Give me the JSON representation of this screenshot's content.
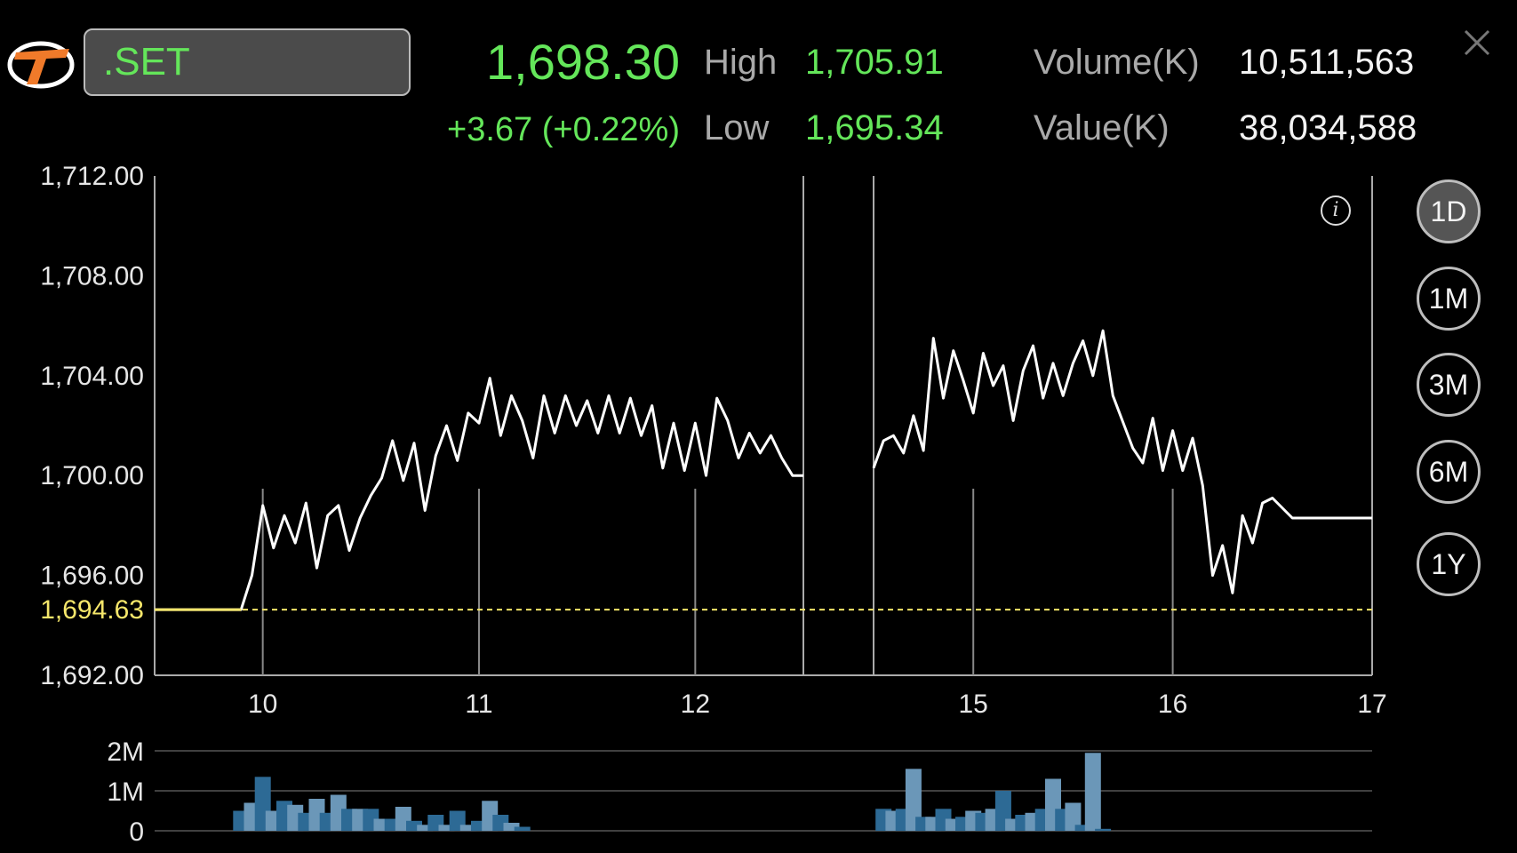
{
  "header": {
    "symbol": ".SET",
    "last_price": "1,698.30",
    "change": "+3.67 (+0.22%)",
    "high_label": "High",
    "high_value": "1,705.91",
    "low_label": "Low",
    "low_value": "1,695.34",
    "volume_label": "Volume(K)",
    "volume_value": "10,511,563",
    "value_label": "Value(K)",
    "value_value": "38,034,588"
  },
  "periods": [
    {
      "label": "1D",
      "active": true
    },
    {
      "label": "1M",
      "active": false
    },
    {
      "label": "3M",
      "active": false
    },
    {
      "label": "6M",
      "active": false
    },
    {
      "label": "1Y",
      "active": false
    }
  ],
  "icons": {
    "logo": "brand-logo-icon",
    "close": "close-icon",
    "info": "info-icon"
  },
  "colors": {
    "up": "#64e65a",
    "reference": "#f5e66a",
    "line": "#ffffff",
    "volume_dark": "#2d6a95",
    "volume_light": "#6b97b8"
  },
  "chart_data": [
    {
      "type": "line",
      "title": "",
      "xlabel": "",
      "ylabel": "",
      "x_ticks": [
        "10",
        "11",
        "12",
        "15",
        "16",
        "17"
      ],
      "y_ticks": [
        "1,712.00",
        "1,708.00",
        "1,704.00",
        "1,700.00",
        "1,696.00",
        "1,692.00"
      ],
      "ylim": [
        1692,
        1712
      ],
      "reference_line": {
        "label": "1,694.63",
        "value": 1694.63
      },
      "grid": false,
      "series": [
        {
          "segment": "morning",
          "x": [
            9.5,
            9.6,
            9.7,
            9.8,
            9.9,
            9.95,
            10.0,
            10.05,
            10.1,
            10.15,
            10.2,
            10.25,
            10.3,
            10.35,
            10.4,
            10.45,
            10.5,
            10.55,
            10.6,
            10.65,
            10.7,
            10.75,
            10.8,
            10.85,
            10.9,
            10.95,
            11.0,
            11.05,
            11.1,
            11.15,
            11.2,
            11.25,
            11.3,
            11.35,
            11.4,
            11.45,
            11.5,
            11.55,
            11.6,
            11.65,
            11.7,
            11.75,
            11.8,
            11.85,
            11.9,
            11.95,
            12.0,
            12.05,
            12.1,
            12.15,
            12.2,
            12.25,
            12.3,
            12.35,
            12.4,
            12.45,
            12.5
          ],
          "y": [
            1694.63,
            1694.63,
            1694.63,
            1694.63,
            1694.63,
            1696.0,
            1698.8,
            1697.1,
            1698.4,
            1697.3,
            1698.9,
            1696.3,
            1698.4,
            1698.8,
            1697.0,
            1698.3,
            1699.2,
            1699.9,
            1701.4,
            1699.8,
            1701.3,
            1698.6,
            1700.8,
            1702.0,
            1700.6,
            1702.5,
            1702.1,
            1703.9,
            1701.6,
            1703.2,
            1702.2,
            1700.7,
            1703.2,
            1701.7,
            1703.2,
            1702.0,
            1703.0,
            1701.7,
            1703.2,
            1701.7,
            1703.1,
            1701.6,
            1702.8,
            1700.3,
            1702.1,
            1700.2,
            1702.1,
            1700.0,
            1703.1,
            1702.2,
            1700.7,
            1701.7,
            1700.9,
            1701.6,
            1700.7,
            1700.0,
            1700.0
          ]
        },
        {
          "segment": "afternoon",
          "x": [
            14.5,
            14.55,
            14.6,
            14.65,
            14.7,
            14.75,
            14.8,
            14.85,
            14.9,
            14.95,
            15.0,
            15.05,
            15.1,
            15.15,
            15.2,
            15.25,
            15.3,
            15.35,
            15.4,
            15.45,
            15.5,
            15.55,
            15.6,
            15.65,
            15.7,
            15.8,
            15.85,
            15.9,
            15.95,
            16.0,
            16.05,
            16.1,
            16.15,
            16.2,
            16.25,
            16.3,
            16.35,
            16.4,
            16.45,
            16.5,
            16.6,
            16.7,
            16.8,
            16.9,
            17.0
          ],
          "y": [
            1700.3,
            1701.4,
            1701.6,
            1700.9,
            1702.4,
            1701.0,
            1705.5,
            1703.1,
            1705.0,
            1703.8,
            1702.5,
            1704.9,
            1703.6,
            1704.4,
            1702.2,
            1704.2,
            1705.2,
            1703.1,
            1704.5,
            1703.2,
            1704.5,
            1705.4,
            1704.0,
            1705.8,
            1703.2,
            1701.1,
            1700.5,
            1702.3,
            1700.2,
            1701.8,
            1700.2,
            1701.5,
            1699.6,
            1696.0,
            1697.2,
            1695.3,
            1698.4,
            1697.3,
            1698.9,
            1699.1,
            1698.3,
            1698.3,
            1698.3,
            1698.3,
            1698.3
          ]
        }
      ]
    },
    {
      "type": "bar",
      "title": "",
      "y_ticks": [
        "2M",
        "1M",
        "0"
      ],
      "ylim": [
        0,
        2000000
      ],
      "series": [
        {
          "segment": "morning",
          "x": [
            9.9,
            9.95,
            10.0,
            10.05,
            10.1,
            10.15,
            10.2,
            10.25,
            10.3,
            10.35,
            10.4,
            10.45,
            10.5,
            10.55,
            10.6,
            10.65,
            10.7,
            10.75,
            10.8,
            10.85,
            10.9,
            10.95,
            11.0,
            11.05,
            11.1,
            11.15,
            11.2,
            11.25,
            11.3,
            11.35,
            11.4,
            11.45,
            11.5,
            11.55,
            11.6,
            11.65,
            11.7,
            11.75,
            11.8,
            11.85,
            11.9,
            11.95,
            12.0,
            12.05,
            12.1,
            12.15,
            12.2,
            12.25,
            12.3,
            12.35,
            12.4,
            12.45
          ],
          "values": [
            500000,
            700000,
            1350000,
            500000,
            750000,
            650000,
            450000,
            800000,
            450000,
            900000,
            550000,
            550000,
            550000,
            300000,
            300000,
            600000,
            250000,
            150000,
            400000,
            150000,
            500000,
            150000,
            250000,
            750000,
            400000,
            200000,
            100000,
            0,
            0,
            0,
            0,
            0,
            0,
            0,
            0,
            0,
            0,
            0,
            0,
            0,
            0,
            0,
            0,
            0,
            0,
            0,
            0,
            0,
            0,
            0,
            0,
            0
          ]
        },
        {
          "segment": "afternoon",
          "x": [
            14.55,
            14.6,
            14.65,
            14.7,
            14.75,
            14.8,
            14.85,
            14.9,
            14.95,
            15.0,
            15.05,
            15.1,
            15.15,
            15.2,
            15.25,
            15.3,
            15.35,
            15.4,
            15.45,
            15.5,
            15.55,
            15.6,
            15.65,
            15.7,
            15.75,
            15.8
          ],
          "values": [
            550000,
            500000,
            550000,
            1550000,
            350000,
            350000,
            550000,
            300000,
            350000,
            500000,
            450000,
            550000,
            1000000,
            300000,
            400000,
            450000,
            550000,
            1300000,
            550000,
            700000,
            150000,
            1950000,
            50000,
            0,
            0,
            0
          ]
        }
      ]
    }
  ]
}
